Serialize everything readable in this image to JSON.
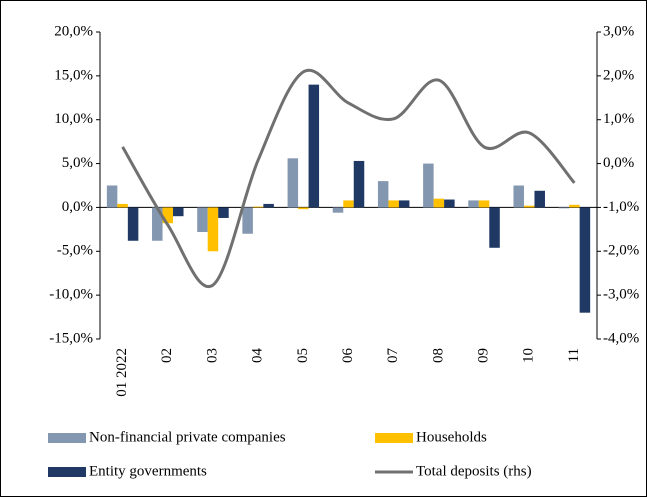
{
  "chart_data": {
    "type": "bar",
    "categories": [
      "01 2022",
      "02",
      "03",
      "04",
      "05",
      "06",
      "07",
      "08",
      "09",
      "10",
      "11"
    ],
    "series": [
      {
        "name": "Non-financial private companies",
        "color": "#8497b0",
        "values": [
          2.5,
          -3.8,
          -2.8,
          -3.0,
          5.6,
          -0.6,
          3.0,
          5.0,
          0.8,
          2.5,
          -0.1
        ]
      },
      {
        "name": "Households",
        "color": "#ffc000",
        "values": [
          0.4,
          -1.8,
          -5.0,
          0.1,
          -0.2,
          0.8,
          0.8,
          1.0,
          0.8,
          0.2,
          0.3
        ]
      },
      {
        "name": "Entity governments",
        "color": "#1f3864",
        "values": [
          -3.8,
          -1.0,
          -1.2,
          0.4,
          14.0,
          5.3,
          0.8,
          0.9,
          -4.6,
          1.9,
          -12.0
        ]
      },
      {
        "name": "Total deposits (rhs)",
        "color": "#707070",
        "type": "line",
        "axis": "y2",
        "values": [
          0.38,
          -1.4,
          -2.77,
          0.08,
          2.09,
          1.38,
          1.02,
          1.9,
          0.38,
          0.7,
          -0.44
        ]
      }
    ],
    "ylim": [
      -15,
      20
    ],
    "yticks": [
      {
        "value": -15,
        "label": "-15,0%"
      },
      {
        "value": -10,
        "label": "-10,0%"
      },
      {
        "value": -5,
        "label": "-5,0%"
      },
      {
        "value": 0,
        "label": "0,0%"
      },
      {
        "value": 5,
        "label": "5,0%"
      },
      {
        "value": 10,
        "label": "10,0%"
      },
      {
        "value": 15,
        "label": "15,0%"
      },
      {
        "value": 20,
        "label": "20,0%"
      }
    ],
    "y2lim": [
      -4,
      3
    ],
    "y2ticks": [
      {
        "value": -4,
        "label": "-4,0%"
      },
      {
        "value": -3,
        "label": "-3,0%"
      },
      {
        "value": -2,
        "label": "-2,0%"
      },
      {
        "value": -1,
        "label": "-1,0%"
      },
      {
        "value": 0,
        "label": "0,0%"
      },
      {
        "value": 1,
        "label": "1,0%"
      },
      {
        "value": 2,
        "label": "2,0%"
      },
      {
        "value": 3,
        "label": "3,0%"
      }
    ]
  }
}
